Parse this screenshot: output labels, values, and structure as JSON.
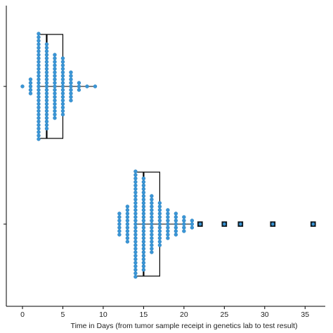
{
  "chart_data": {
    "type": "scatter",
    "subtype": "box-plot with dot (beeswarm) overlay",
    "title": "",
    "xlabel": "Time in Days (from tumor sample receipt in genetics lab to test result)",
    "ylabel": "",
    "xlim": [
      -2,
      37.5
    ],
    "xticks": [
      0,
      5,
      10,
      15,
      20,
      25,
      30,
      35
    ],
    "grid": false,
    "legend": "none",
    "colors": {
      "points": "#3a95d6",
      "box": "#000000",
      "outlier_marker": "#10222e"
    },
    "series": [
      {
        "group": "upper",
        "box": {
          "min": 2,
          "q1": 2,
          "median": 3,
          "q3": 5,
          "max": 9
        },
        "point_counts": {
          "0": 1,
          "1": 5,
          "2": 31,
          "3": 25,
          "4": 19,
          "5": 17,
          "6": 9,
          "7": 3,
          "8": 1,
          "9": 1
        }
      },
      {
        "group": "lower",
        "box": {
          "min": 14,
          "q1": 14,
          "median": 15,
          "q3": 17,
          "max": 21
        },
        "point_counts": {
          "12": 7,
          "13": 11,
          "14": 31,
          "15": 27,
          "16": 17,
          "17": 13,
          "18": 9,
          "19": 7,
          "20": 5,
          "21": 3
        },
        "outliers": [
          22,
          25,
          27,
          31,
          36
        ]
      }
    ]
  }
}
